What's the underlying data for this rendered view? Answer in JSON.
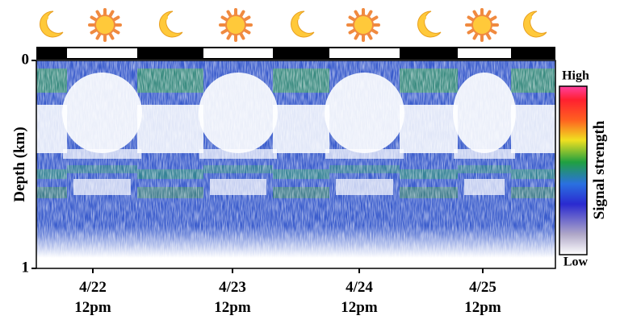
{
  "chart_data": {
    "type": "echogram",
    "y_label": "Depth (km)",
    "ylim": [
      0,
      1
    ],
    "yticks": [
      0,
      1
    ],
    "x_labels": [
      [
        "4/22",
        "12pm"
      ],
      [
        "4/23",
        "12pm"
      ],
      [
        "4/24",
        "12pm"
      ],
      [
        "4/25",
        "12pm"
      ]
    ],
    "colorbar": {
      "label": "Signal strength",
      "high": "High",
      "low": "Low"
    }
  }
}
